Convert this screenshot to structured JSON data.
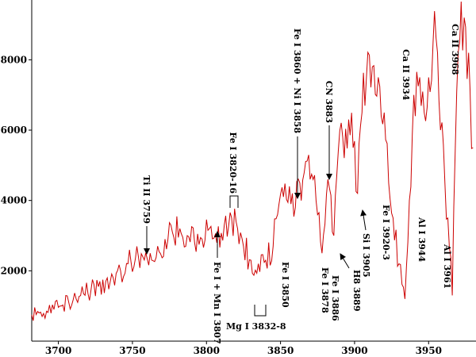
{
  "chart_data": {
    "type": "line",
    "title": "",
    "xlabel": "",
    "ylabel": "",
    "xlim": [
      3682,
      3982
    ],
    "ylim": [
      0,
      9700
    ],
    "xticks": [
      3700,
      3750,
      3800,
      3850,
      3900,
      3950
    ],
    "yticks": [
      2000,
      4000,
      6000,
      8000
    ],
    "grid": false,
    "colors": {
      "line": "#cc0000",
      "axis": "#000000",
      "text": "#000000"
    },
    "series": [
      {
        "x": [
          3682,
          3687,
          3692,
          3697,
          3702,
          3707,
          3712,
          3717,
          3722,
          3727,
          3732,
          3737,
          3742,
          3747,
          3752,
          3757,
          3762,
          3767,
          3772,
          3777,
          3782,
          3787,
          3792,
          3797,
          3802,
          3807,
          3812,
          3817,
          3820,
          3825,
          3830,
          3835,
          3840,
          3845,
          3848,
          3852,
          3856,
          3858,
          3860,
          3863,
          3866,
          3870,
          3874,
          3878,
          3882,
          3886,
          3889,
          3892,
          3896,
          3899,
          3902,
          3905,
          3908,
          3912,
          3916,
          3920,
          3923,
          3926,
          3930,
          3934,
          3937,
          3940,
          3944,
          3947,
          3950,
          3953,
          3956,
          3958,
          3961,
          3963,
          3966,
          3968,
          3971,
          3974,
          3977,
          3980
        ],
        "values": [
          750,
          800,
          850,
          900,
          1000,
          1100,
          1200,
          1350,
          1450,
          1550,
          1700,
          1800,
          2000,
          2200,
          2350,
          2400,
          2500,
          2700,
          2900,
          3100,
          3200,
          3000,
          2800,
          2900,
          3200,
          2800,
          3300,
          3500,
          3400,
          2700,
          2300,
          2200,
          2300,
          2700,
          3600,
          4100,
          4400,
          4200,
          3800,
          4500,
          4800,
          4600,
          4000,
          2500,
          4600,
          3000,
          5400,
          5800,
          6300,
          5500,
          4200,
          6500,
          7500,
          7800,
          7500,
          6500,
          4500,
          3500,
          2200,
          1200,
          4000,
          7000,
          7500,
          6500,
          7500,
          8500,
          8200,
          6000,
          4500,
          3500,
          1300,
          5500,
          8500,
          9200,
          8200,
          5500
        ]
      }
    ]
  },
  "annotations": [
    {
      "label": "Ti II 3759"
    },
    {
      "label": "Fe I + Mn I 3807"
    },
    {
      "label": "Fe I 3820-16"
    },
    {
      "label": "Mg I 3832-8"
    },
    {
      "label": "Fe I 3850"
    },
    {
      "label": "Fe I 3860 + Ni I 3858"
    },
    {
      "label": "CN 3883"
    },
    {
      "label": "Fe I 3878"
    },
    {
      "label": "Fe I 3886"
    },
    {
      "label": "H8 3889"
    },
    {
      "label": "Si I 3905"
    },
    {
      "label": "Fe I 3920-3"
    },
    {
      "label": "Ca II 3934"
    },
    {
      "label": "Al I 3944"
    },
    {
      "label": "Al I 3961"
    },
    {
      "label": "Ca II 3968"
    }
  ]
}
